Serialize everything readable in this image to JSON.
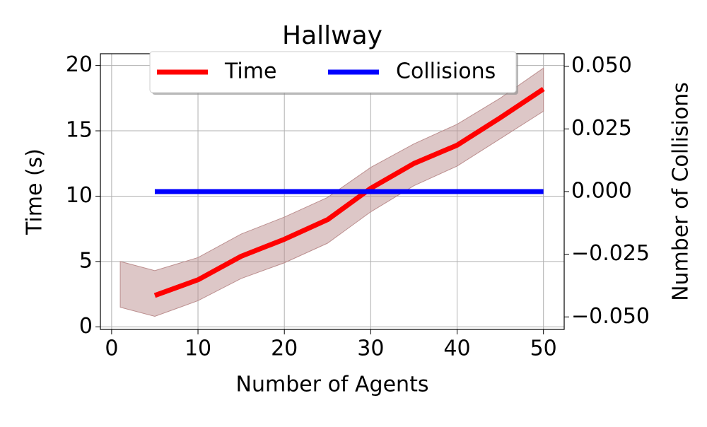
{
  "chart_data": {
    "type": "line",
    "title": "Hallway",
    "x_label": "Number of Agents",
    "y_label": "Time (s)",
    "y2_label": "Number of Collisions",
    "xlim": [
      -1.3,
      52.4
    ],
    "xticks": [
      0,
      10,
      20,
      30,
      40,
      50
    ],
    "ylim": [
      -0.2,
      20.9
    ],
    "yticks": [
      0,
      5,
      10,
      15,
      20
    ],
    "y2lim": [
      -0.055,
      0.055
    ],
    "y2ticks": [
      {
        "value": 0.05,
        "label": "0.050"
      },
      {
        "value": 0.025,
        "label": "0.025"
      },
      {
        "value": 0,
        "label": "0.000"
      },
      {
        "value": -0.025,
        "label": "−0.025"
      },
      {
        "value": -0.05,
        "label": "−0.050"
      }
    ],
    "grid": true,
    "legend": "upper center",
    "series": [
      {
        "name": "Time",
        "color": "#ff0000",
        "x": [
          5,
          10,
          15,
          20,
          25,
          30,
          35,
          40,
          45,
          50
        ],
        "values": [
          2.4,
          3.6,
          5.4,
          6.7,
          8.2,
          10.6,
          12.5,
          13.9,
          16.0,
          18.2
        ]
      },
      {
        "name": "Collisions",
        "color": "#0000ff",
        "axis": "y2",
        "x": [
          5,
          10,
          15,
          20,
          25,
          30,
          35,
          40,
          45,
          50
        ],
        "values": [
          0,
          0,
          0,
          0,
          0,
          0,
          0,
          0,
          0,
          0
        ]
      }
    ],
    "band": {
      "color": "#bc8f8f",
      "x": [
        1,
        5,
        10,
        15,
        20,
        25,
        30,
        35,
        40,
        45,
        50
      ],
      "upper": [
        5.0,
        4.3,
        5.3,
        7.1,
        8.4,
        9.9,
        12.2,
        14.0,
        15.5,
        17.5,
        19.8
      ],
      "lower": [
        1.5,
        0.8,
        2.0,
        3.7,
        4.9,
        6.4,
        8.8,
        10.8,
        12.3,
        14.4,
        16.5
      ]
    }
  }
}
